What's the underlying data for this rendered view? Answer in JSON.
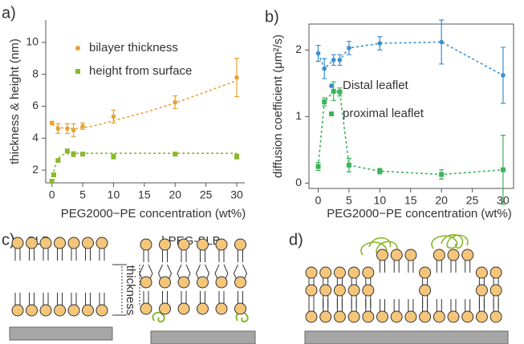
{
  "chart_data": [
    {
      "type": "scatter",
      "panel_label": "a)",
      "x_label": "PEG2000−PE concentration (wt%)",
      "y_label": "thickness & height (nm)",
      "xlim": [
        -1,
        31.3
      ],
      "ylim": [
        1.2,
        11.4
      ],
      "xticks": [
        0,
        5,
        10,
        15,
        20,
        25,
        30
      ],
      "yticks": [
        2,
        4,
        6,
        8,
        10
      ],
      "legend": "upper left",
      "series": [
        {
          "name": "bilayer thickness",
          "color": "#e8a030",
          "x": [
            0,
            1,
            2.5,
            3.5,
            5,
            10,
            20,
            30
          ],
          "values": [
            4.95,
            4.6,
            4.6,
            4.5,
            4.75,
            5.35,
            6.25,
            7.8
          ],
          "errors": [
            0.1,
            0.3,
            0.3,
            0.4,
            0.2,
            0.4,
            0.4,
            1.2
          ],
          "fit_x": [
            0,
            1,
            2,
            3,
            4,
            6,
            8,
            10,
            12.5,
            15,
            17.5,
            20,
            22.5,
            25,
            27.5,
            30
          ],
          "fit_values": [
            4.85,
            4.7,
            4.62,
            4.6,
            4.6,
            4.7,
            4.88,
            5.1,
            5.35,
            5.6,
            5.9,
            6.2,
            6.55,
            6.9,
            7.25,
            7.6
          ]
        },
        {
          "name": "height from surface",
          "color": "#8ab82e",
          "x": [
            0,
            0.3,
            1,
            2.5,
            3.5,
            5,
            10,
            20,
            30
          ],
          "values": [
            1.3,
            1.7,
            2.6,
            3.2,
            3.0,
            3.0,
            2.85,
            3.0,
            2.85
          ],
          "errors": [
            0.1,
            0.1,
            0.1,
            0.1,
            0.15,
            0.1,
            0.15,
            0.1,
            0.15
          ],
          "fit_x": [
            0,
            0.25,
            0.5,
            1,
            1.5,
            2,
            3,
            5,
            10,
            20,
            30
          ],
          "fit_values": [
            1.3,
            1.8,
            2.2,
            2.7,
            2.9,
            3.0,
            3.05,
            3.05,
            3.05,
            3.05,
            3.05
          ]
        }
      ]
    },
    {
      "type": "line",
      "panel_label": "b)",
      "x_label": "PEG2000−PE concentration (wt%)",
      "y_label": "diffusion coefficient (μm²/s)",
      "xlim": [
        -1.5,
        31.7
      ],
      "ylim": [
        -0.08,
        2.39
      ],
      "xticks": [
        0,
        5,
        10,
        15,
        20,
        25,
        30
      ],
      "yticks": [
        0,
        1,
        2
      ],
      "legend": "center",
      "x": [
        0,
        1,
        2.5,
        3.5,
        5,
        10,
        20,
        30
      ],
      "series": [
        {
          "name": "Distal leaflet",
          "color": "#3a8fd0",
          "values": [
            1.95,
            1.72,
            1.85,
            1.85,
            2.03,
            2.1,
            2.12,
            1.62
          ],
          "errors": [
            0.12,
            0.15,
            0.08,
            0.08,
            0.1,
            0.1,
            0.33,
            0.42
          ]
        },
        {
          "name": "proximal leaflet",
          "color": "#3bb55a",
          "values": [
            0.25,
            1.22,
            1.38,
            1.37,
            0.27,
            0.18,
            0.13,
            0.2
          ],
          "errors": [
            0.06,
            0.06,
            0.14,
            0.06,
            0.1,
            0.04,
            0.07,
            0.52
          ]
        }
      ]
    }
  ],
  "diagrams": {
    "c": {
      "label": "c)",
      "slb": "SLB",
      "peg_slb": "l-PEG-SLB",
      "thickness": "thickness"
    },
    "d": {
      "label": "d)"
    }
  }
}
